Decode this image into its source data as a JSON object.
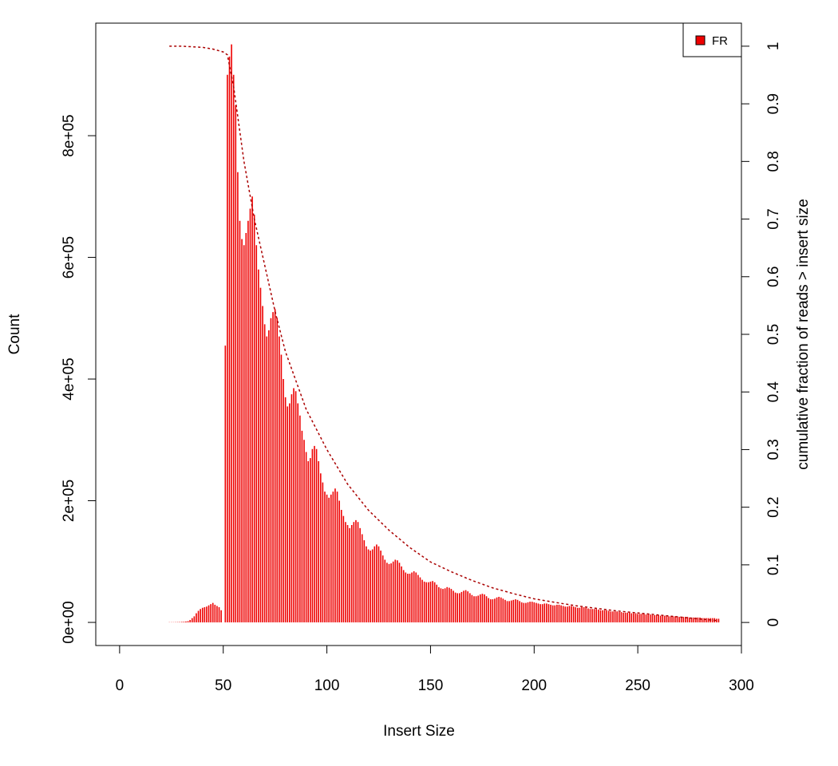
{
  "chart_data": {
    "type": "bar",
    "xlabel": "Insert Size",
    "ylabel": "Count",
    "y2label": "cumulative fraction of reads > insert size",
    "xlim": [
      -11.5,
      300
    ],
    "ylim": [
      -38000,
      985000
    ],
    "y2lim": [
      -0.04,
      1.04
    ],
    "xticks": [
      0,
      50,
      100,
      150,
      200,
      250,
      300
    ],
    "yticks": [
      {
        "value": 0,
        "label": "0e+00"
      },
      {
        "value": 200000,
        "label": "2e+05"
      },
      {
        "value": 400000,
        "label": "4e+05"
      },
      {
        "value": 600000,
        "label": "6e+05"
      },
      {
        "value": 800000,
        "label": "8e+05"
      }
    ],
    "y2ticks": [
      0,
      0.1,
      0.2,
      0.3,
      0.4,
      0.5,
      0.6,
      0.7,
      0.8,
      0.9,
      1
    ],
    "legend": "topright",
    "series": [
      {
        "name": "FR",
        "color": "#ee0000",
        "x": [
          24,
          25,
          26,
          27,
          28,
          29,
          30,
          31,
          32,
          33,
          34,
          35,
          36,
          37,
          38,
          39,
          40,
          41,
          42,
          43,
          44,
          45,
          46,
          47,
          48,
          49,
          50,
          51,
          52,
          53,
          54,
          55,
          56,
          57,
          58,
          59,
          60,
          61,
          62,
          63,
          64,
          65,
          66,
          67,
          68,
          69,
          70,
          71,
          72,
          73,
          74,
          75,
          76,
          77,
          78,
          79,
          80,
          81,
          82,
          83,
          84,
          85,
          86,
          87,
          88,
          89,
          90,
          91,
          92,
          93,
          94,
          95,
          96,
          97,
          98,
          99,
          100,
          101,
          102,
          103,
          104,
          105,
          106,
          107,
          108,
          109,
          110,
          111,
          112,
          113,
          114,
          115,
          116,
          117,
          118,
          119,
          120,
          121,
          122,
          123,
          124,
          125,
          126,
          127,
          128,
          129,
          130,
          131,
          132,
          133,
          134,
          135,
          136,
          137,
          138,
          139,
          140,
          141,
          142,
          143,
          144,
          145,
          146,
          147,
          148,
          149,
          150,
          151,
          152,
          153,
          154,
          155,
          156,
          157,
          158,
          159,
          160,
          161,
          162,
          163,
          164,
          165,
          166,
          167,
          168,
          169,
          170,
          171,
          172,
          173,
          174,
          175,
          176,
          177,
          178,
          179,
          180,
          181,
          182,
          183,
          184,
          185,
          186,
          187,
          188,
          189,
          190,
          191,
          192,
          193,
          194,
          195,
          196,
          197,
          198,
          199,
          200,
          201,
          202,
          203,
          204,
          205,
          206,
          207,
          208,
          209,
          210,
          211,
          212,
          213,
          214,
          215,
          216,
          217,
          218,
          219,
          220,
          221,
          222,
          223,
          224,
          225,
          226,
          227,
          228,
          229,
          230,
          231,
          232,
          233,
          234,
          235,
          236,
          237,
          238,
          239,
          240,
          241,
          242,
          243,
          244,
          245,
          246,
          247,
          248,
          249,
          250,
          251,
          252,
          253,
          254,
          255,
          256,
          257,
          258,
          259,
          260,
          261,
          262,
          263,
          264,
          265,
          266,
          267,
          268,
          269,
          270,
          271,
          272,
          273,
          274,
          275,
          276,
          277,
          278,
          279,
          280,
          281,
          282,
          283,
          284,
          285,
          286,
          287,
          288,
          289
        ],
        "values": [
          300,
          300,
          300,
          400,
          500,
          600,
          800,
          1000,
          1500,
          2000,
          4000,
          7000,
          10000,
          15000,
          19000,
          22000,
          24000,
          25000,
          26000,
          28000,
          30000,
          32000,
          29000,
          27000,
          25000,
          20000,
          0,
          455000,
          900000,
          930000,
          950000,
          900000,
          850000,
          740000,
          660000,
          630000,
          620000,
          640000,
          660000,
          680000,
          700000,
          670000,
          620000,
          580000,
          550000,
          520000,
          490000,
          470000,
          480000,
          500000,
          510000,
          515000,
          500000,
          470000,
          440000,
          400000,
          370000,
          355000,
          360000,
          375000,
          385000,
          380000,
          360000,
          340000,
          315000,
          300000,
          280000,
          265000,
          270000,
          285000,
          290000,
          285000,
          265000,
          245000,
          230000,
          215000,
          210000,
          205000,
          210000,
          215000,
          220000,
          215000,
          200000,
          185000,
          175000,
          165000,
          160000,
          155000,
          160000,
          165000,
          168000,
          165000,
          155000,
          145000,
          135000,
          125000,
          120000,
          118000,
          120000,
          125000,
          128000,
          125000,
          118000,
          110000,
          103000,
          98000,
          96000,
          97000,
          100000,
          103000,
          102000,
          98000,
          92000,
          86000,
          82000,
          80000,
          80000,
          82000,
          84000,
          82000,
          78000,
          74000,
          70000,
          67000,
          66000,
          66000,
          67000,
          68000,
          66000,
          62000,
          58000,
          56000,
          55000,
          56000,
          58000,
          57000,
          55000,
          52000,
          49000,
          48000,
          48000,
          50000,
          52000,
          53000,
          51000,
          48000,
          45000,
          43000,
          43000,
          44000,
          46000,
          47000,
          46000,
          43000,
          40000,
          38000,
          38000,
          39000,
          41000,
          42000,
          41000,
          39000,
          37000,
          35000,
          35000,
          36000,
          37000,
          38000,
          37000,
          35000,
          33000,
          32000,
          32000,
          33000,
          34000,
          34000,
          33000,
          32000,
          31000,
          30000,
          30000,
          31000,
          31000,
          30000,
          29000,
          28000,
          28000,
          29000,
          29000,
          28000,
          27000,
          26000,
          26000,
          27000,
          27000,
          26000,
          25000,
          24000,
          24000,
          25000,
          25000,
          24000,
          23000,
          22000,
          22000,
          22000,
          22000,
          21000,
          20000,
          20000,
          20000,
          20000,
          19000,
          18000,
          18000,
          18000,
          18000,
          17000,
          17000,
          16000,
          16000,
          16000,
          16000,
          15000,
          15000,
          15000,
          14000,
          14000,
          14000,
          14000,
          13000,
          13000,
          13000,
          12000,
          12000,
          12000,
          12000,
          11000,
          11000,
          11000,
          11000,
          10000,
          10000,
          10000,
          10000,
          10000,
          9000,
          9000,
          9000,
          9000,
          9000,
          8000,
          8000,
          8000,
          8000,
          8000,
          8000,
          7000,
          7000,
          7000,
          7000,
          7000,
          7000,
          7000,
          6000,
          6000
        ]
      },
      {
        "color": "#aa0000",
        "axis": "y2",
        "x": [
          24,
          30,
          40,
          45,
          50,
          52,
          55,
          60,
          65,
          70,
          75,
          80,
          90,
          100,
          110,
          120,
          130,
          140,
          150,
          160,
          170,
          180,
          190,
          200,
          220,
          240,
          260,
          280,
          289
        ],
        "values": [
          1,
          1,
          0.998,
          0.995,
          0.99,
          0.985,
          0.93,
          0.8,
          0.7,
          0.62,
          0.54,
          0.47,
          0.37,
          0.3,
          0.24,
          0.195,
          0.16,
          0.13,
          0.105,
          0.088,
          0.073,
          0.06,
          0.05,
          0.041,
          0.029,
          0.02,
          0.013,
          0.006,
          0.003
        ]
      }
    ]
  }
}
